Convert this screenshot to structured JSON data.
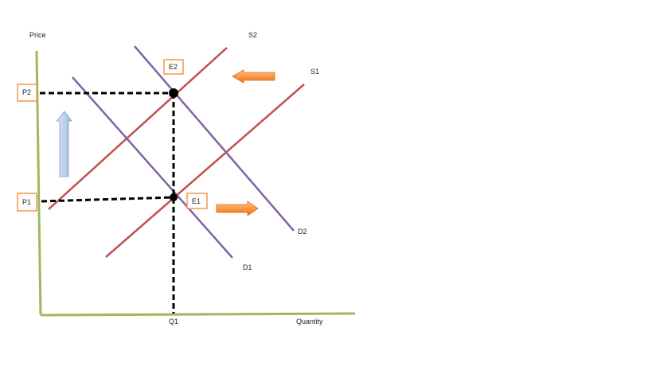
{
  "labels": {
    "price": "Price",
    "quantity": "Quantity",
    "s1": "S1",
    "s2": "S2",
    "d1": "D1",
    "d2": "D2",
    "q1": "Q1",
    "p1": "P1",
    "p2": "P2",
    "e1": "E1",
    "e2": "E2"
  },
  "colors": {
    "axis": "#9bbb59",
    "supply": "#c0504d",
    "demand": "#8064a2",
    "label_box": "#f79646",
    "shift_arrow": "#e46c0a",
    "price_arrow": "#4f81bd"
  }
}
